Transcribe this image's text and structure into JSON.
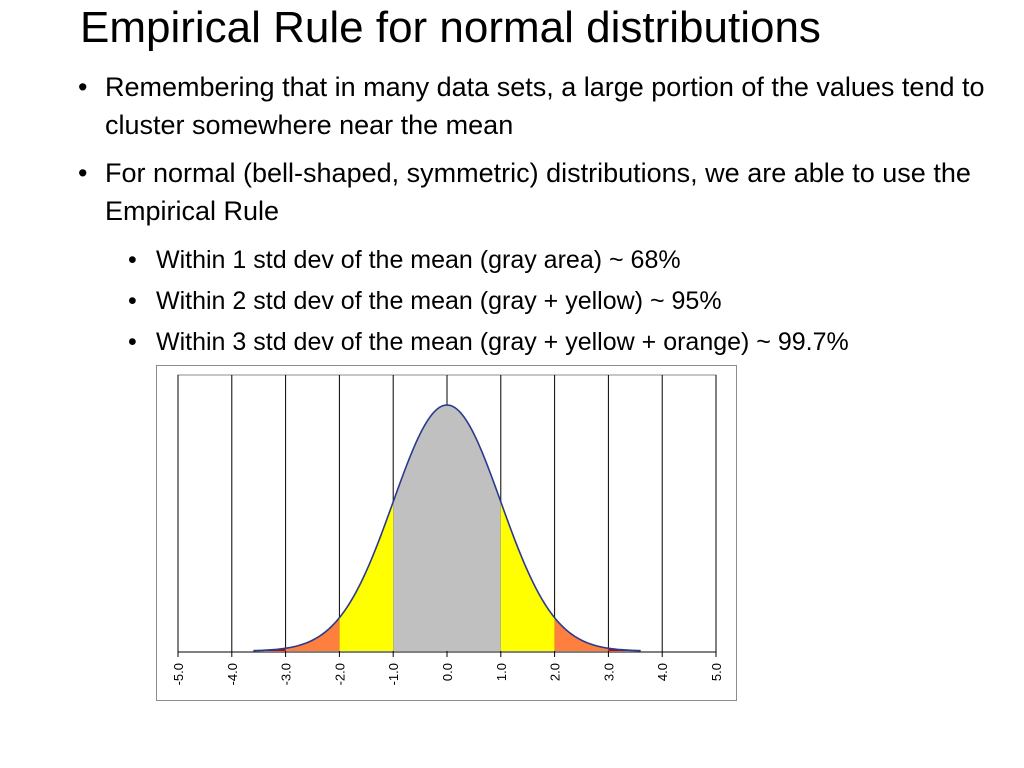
{
  "slide": {
    "title": "Empirical Rule for normal distributions",
    "bullet_glyph": "•",
    "bullets": [
      "Remembering that in many data sets, a large portion of the values tend to cluster somewhere near the mean",
      "For normal (bell-shaped, symmetric) distributions, we are able to use the Empirical Rule"
    ],
    "sub_bullets": [
      "Within 1 std dev of the mean (gray area)  ~ 68%",
      "Within 2 std dev of the mean (gray + yellow) ~ 95%",
      "Within 3 std dev of the mean (gray + yellow + orange) ~ 99.7%"
    ]
  },
  "chart_data": {
    "type": "area",
    "title": "",
    "xlabel": "",
    "ylabel": "",
    "xlim": [
      -5,
      5
    ],
    "x_ticks": [
      "-5.0",
      "-4.0",
      "-3.0",
      "-2.0",
      "-1.0",
      "0.0",
      "1.0",
      "2.0",
      "3.0",
      "4.0",
      "5.0"
    ],
    "tick_values": [
      -5,
      -4,
      -3,
      -2,
      -1,
      0,
      1,
      2,
      3,
      4,
      5
    ],
    "grid": "vertical",
    "legend": "none",
    "curve": {
      "distribution": "normal",
      "mean": 0,
      "std_dev": 1,
      "x_range": [
        -3.6,
        3.6
      ],
      "color": "#2c3a8c"
    },
    "regions": [
      {
        "name": "gray",
        "from": -1,
        "to": 1,
        "color": "#c0c0c0",
        "percent": 68
      },
      {
        "name": "yellow",
        "from": -2,
        "to": -1,
        "color": "#ffff00",
        "percent": 95
      },
      {
        "name": "yellow",
        "from": 1,
        "to": 2,
        "color": "#ffff00",
        "percent": 95
      },
      {
        "name": "orange",
        "from": -3,
        "to": -2,
        "color": "#ff7f3f",
        "percent": 99.7
      },
      {
        "name": "orange",
        "from": 2,
        "to": 3,
        "color": "#ff7f3f",
        "percent": 99.7
      },
      {
        "name": "red-tail",
        "from": -3.6,
        "to": -3,
        "color": "#cc0000"
      },
      {
        "name": "red-tail",
        "from": 3,
        "to": 3.6,
        "color": "#cc0000"
      }
    ]
  }
}
